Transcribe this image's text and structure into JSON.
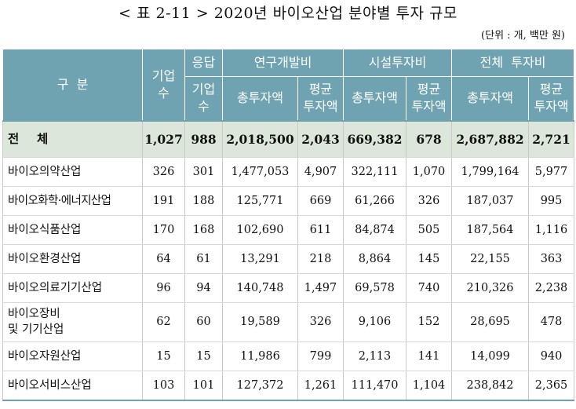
{
  "title": "< 표 2-11 > 2020년 바이오산업 분야별 투자 규모",
  "unit_note": "(단위 : 개, 백만 원)",
  "header": {
    "category": "구  분",
    "companies": "기업\n수",
    "respondents_top": "응답",
    "respondents_bottom": "기업\n수",
    "rnd": "연구개발비",
    "facility": "시설투자비",
    "total_invest": "전체  투자비",
    "total_amount": "총투자액",
    "avg_amount": "평균\n투자액"
  },
  "rows": [
    {
      "name": "전  체",
      "companies": "1,027",
      "resp": "988",
      "rnd_total": "2,018,500",
      "rnd_avg": "2,043",
      "fac_total": "669,382",
      "fac_avg": "678",
      "all_total": "2,687,882",
      "all_avg": "2,721"
    },
    {
      "name": "바이오의약산업",
      "companies": "326",
      "resp": "301",
      "rnd_total": "1,477,053",
      "rnd_avg": "4,907",
      "fac_total": "322,111",
      "fac_avg": "1,070",
      "all_total": "1,799,164",
      "all_avg": "5,977"
    },
    {
      "name": "바이오화학·에너지산업",
      "companies": "191",
      "resp": "188",
      "rnd_total": "125,771",
      "rnd_avg": "669",
      "fac_total": "61,266",
      "fac_avg": "326",
      "all_total": "187,037",
      "all_avg": "995"
    },
    {
      "name": "바이오식품산업",
      "companies": "170",
      "resp": "168",
      "rnd_total": "102,690",
      "rnd_avg": "611",
      "fac_total": "84,874",
      "fac_avg": "505",
      "all_total": "187,564",
      "all_avg": "1,116"
    },
    {
      "name": "바이오환경산업",
      "companies": "64",
      "resp": "61",
      "rnd_total": "13,291",
      "rnd_avg": "218",
      "fac_total": "8,864",
      "fac_avg": "145",
      "all_total": "22,155",
      "all_avg": "363"
    },
    {
      "name": "바이오의료기기산업",
      "companies": "96",
      "resp": "94",
      "rnd_total": "140,748",
      "rnd_avg": "1,497",
      "fac_total": "69,578",
      "fac_avg": "740",
      "all_total": "210,326",
      "all_avg": "2,238"
    },
    {
      "name": "바이오장비\n및 기기산업",
      "companies": "62",
      "resp": "60",
      "rnd_total": "19,589",
      "rnd_avg": "326",
      "fac_total": "9,106",
      "fac_avg": "152",
      "all_total": "28,695",
      "all_avg": "478"
    },
    {
      "name": "바이오자원산업",
      "companies": "15",
      "resp": "15",
      "rnd_total": "11,986",
      "rnd_avg": "799",
      "fac_total": "2,113",
      "fac_avg": "141",
      "all_total": "14,099",
      "all_avg": "940"
    },
    {
      "name": "바이오서비스산업",
      "companies": "103",
      "resp": "101",
      "rnd_total": "127,372",
      "rnd_avg": "1,261",
      "fac_total": "111,470",
      "fac_avg": "1,104",
      "all_total": "238,842",
      "all_avg": "2,365"
    }
  ]
}
